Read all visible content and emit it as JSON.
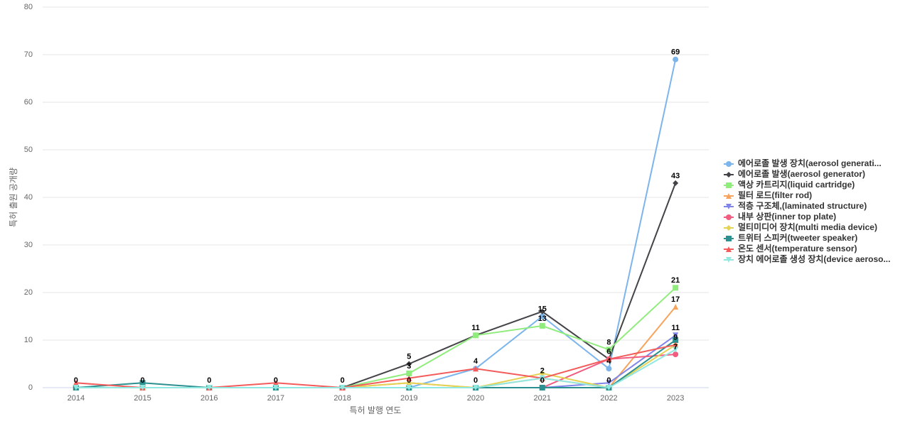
{
  "chart_data": {
    "type": "line",
    "x_label": "특허 발행 연도",
    "y_label": "특허 출원 공개량",
    "categories": [
      "2014",
      "2015",
      "2016",
      "2017",
      "2018",
      "2019",
      "2020",
      "2021",
      "2022",
      "2023"
    ],
    "ylim": [
      0,
      80
    ],
    "yticks": [
      0,
      10,
      20,
      30,
      40,
      50,
      60,
      70,
      80
    ],
    "grid": true,
    "data_labels": true,
    "legend": "right",
    "series": [
      {
        "name": "에어로졸 발생 장치(aerosol generati...",
        "color": "#7cb5ec",
        "marker": "circle",
        "values": [
          0,
          0,
          0,
          0,
          0,
          0,
          4,
          15,
          4,
          69
        ]
      },
      {
        "name": "에어로졸 발생(aerosol generator)",
        "color": "#434348",
        "marker": "diamond",
        "values": [
          0,
          0,
          0,
          0,
          0,
          5,
          11,
          16,
          6,
          43
        ]
      },
      {
        "name": "액상 카트리지(liquid cartridge)",
        "color": "#90ed7d",
        "marker": "square",
        "values": [
          0,
          0,
          0,
          0,
          0,
          3,
          11,
          13,
          8,
          21
        ]
      },
      {
        "name": "필터 로드(filter rod)",
        "color": "#f7a35c",
        "marker": "triangle",
        "values": [
          0,
          0,
          0,
          0,
          0,
          1,
          0,
          2,
          0,
          17
        ]
      },
      {
        "name": "적층 구조체,(laminated structure)",
        "color": "#8085e9",
        "marker": "triangle-down",
        "values": [
          0,
          0,
          0,
          0,
          0,
          0,
          0,
          0,
          1,
          11
        ]
      },
      {
        "name": "내부 상판(inner top plate)",
        "color": "#f15c80",
        "marker": "circle",
        "values": [
          0,
          0,
          0,
          0,
          0,
          0,
          0,
          0,
          6,
          7
        ]
      },
      {
        "name": "멀티미디어 장치(multi media device)",
        "color": "#e4d354",
        "marker": "diamond",
        "values": [
          0,
          0,
          0,
          0,
          0,
          1,
          0,
          3,
          0,
          9
        ]
      },
      {
        "name": "트위터 스피커(tweeter speaker)",
        "color": "#2b908f",
        "marker": "square",
        "values": [
          0,
          1,
          0,
          0,
          0,
          0,
          0,
          0,
          0,
          10
        ]
      },
      {
        "name": "온도 센서(temperature sensor)",
        "color": "#f45b5b",
        "marker": "triangle",
        "values": [
          1,
          0,
          0,
          1,
          0,
          2,
          4,
          2,
          6,
          9
        ]
      },
      {
        "name": "장치 에어로졸 생성 장치(device aeroso...",
        "color": "#91e8e1",
        "marker": "triangle-down",
        "values": [
          0,
          0,
          0,
          0,
          0,
          0,
          0,
          2,
          0,
          8
        ]
      }
    ]
  }
}
